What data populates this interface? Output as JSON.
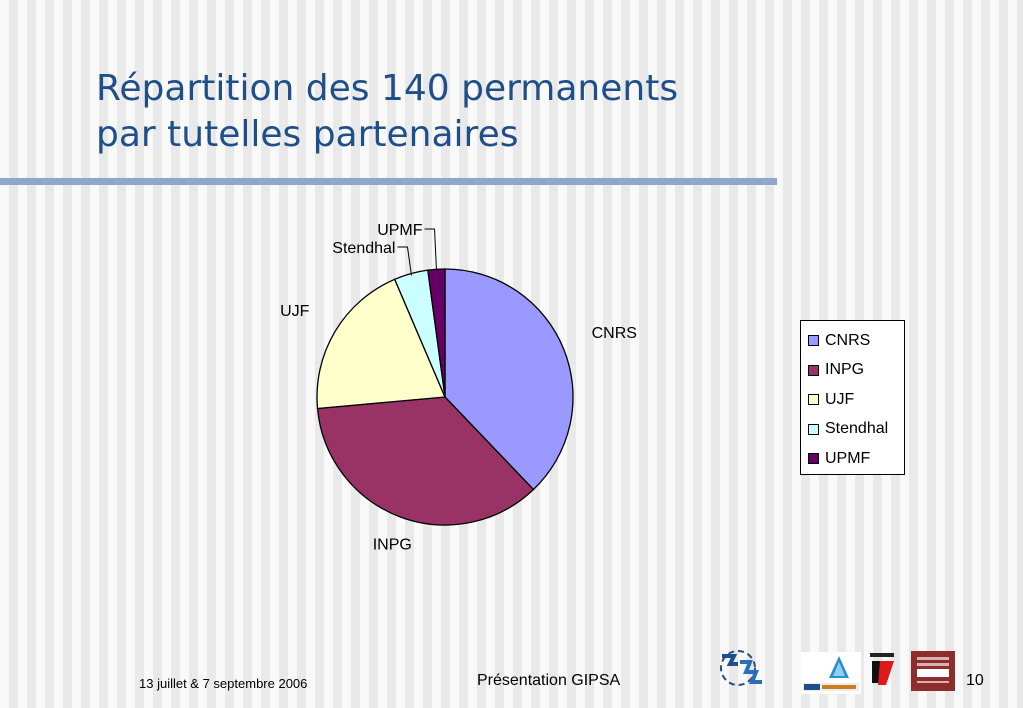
{
  "slide": {
    "title_line1": "Répartition des 140 permanents",
    "title_line2": "par tutelles partenaires"
  },
  "chart_data": {
    "type": "pie",
    "title": "",
    "categories": [
      "CNRS",
      "INPG",
      "UJF",
      "Stendhal",
      "UPMF"
    ],
    "values": [
      53,
      50,
      28,
      6,
      3
    ],
    "colors": [
      "#9999ff",
      "#993366",
      "#ffffcc",
      "#ccffff",
      "#660066"
    ],
    "legend": {
      "position": "right",
      "entries": [
        "CNRS",
        "INPG",
        "UJF",
        "Stendhal",
        "UPMF"
      ]
    },
    "slice_labels": [
      "CNRS",
      "INPG",
      "UJF",
      "Stendhal",
      "UPMF"
    ]
  },
  "footer": {
    "date": "13 juillet & 7 septembre 2006",
    "title": "Présentation GIPSA",
    "page_number": "10"
  },
  "logos": {
    "cnrs": "CNRS logo",
    "inpg": "INP Grenoble logo",
    "ujf": "UJF logo",
    "stendhal": "Université Stendhal logo"
  }
}
